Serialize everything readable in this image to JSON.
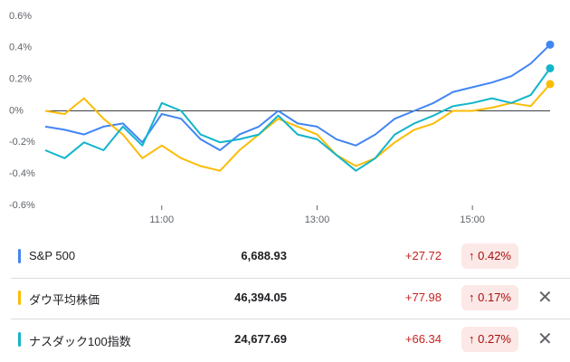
{
  "chart_data": {
    "type": "line",
    "x": [
      9.5,
      9.75,
      10,
      10.25,
      10.5,
      10.75,
      11,
      11.25,
      11.5,
      11.75,
      12,
      12.25,
      12.5,
      12.75,
      13,
      13.25,
      13.5,
      13.75,
      14,
      14.25,
      14.5,
      14.75,
      15,
      15.25,
      15.5,
      15.75,
      16
    ],
    "xlim": [
      9.5,
      16
    ],
    "xticks": [
      {
        "value": 11,
        "label": "11:00"
      },
      {
        "value": 13,
        "label": "13:00"
      },
      {
        "value": 15,
        "label": "15:00"
      }
    ],
    "ylim": [
      -0.6,
      0.6
    ],
    "yticks": [
      {
        "value": 0.6,
        "label": "0.6%"
      },
      {
        "value": 0.4,
        "label": "0.4%"
      },
      {
        "value": 0.2,
        "label": "0.2%"
      },
      {
        "value": 0,
        "label": "0%"
      },
      {
        "value": -0.2,
        "label": "-0.2%"
      },
      {
        "value": -0.4,
        "label": "-0.4%"
      },
      {
        "value": -0.6,
        "label": "-0.6%"
      }
    ],
    "series": [
      {
        "name": "S&P 500",
        "color": "#4285f4",
        "values": [
          -0.1,
          -0.12,
          -0.15,
          -0.1,
          -0.08,
          -0.2,
          -0.02,
          -0.05,
          -0.18,
          -0.25,
          -0.15,
          -0.1,
          0.0,
          -0.08,
          -0.1,
          -0.18,
          -0.22,
          -0.15,
          -0.05,
          0.0,
          0.05,
          0.12,
          0.15,
          0.18,
          0.22,
          0.3,
          0.42
        ]
      },
      {
        "name": "ダウ平均株価",
        "color": "#fbbc04",
        "values": [
          0.0,
          -0.02,
          0.08,
          -0.05,
          -0.15,
          -0.3,
          -0.22,
          -0.3,
          -0.35,
          -0.38,
          -0.25,
          -0.15,
          -0.05,
          -0.1,
          -0.15,
          -0.28,
          -0.35,
          -0.3,
          -0.2,
          -0.12,
          -0.08,
          0.0,
          0.0,
          0.02,
          0.05,
          0.03,
          0.17
        ]
      },
      {
        "name": "ナスダック100指数",
        "color": "#12b5cb",
        "values": [
          -0.25,
          -0.3,
          -0.2,
          -0.25,
          -0.1,
          -0.22,
          0.05,
          0.0,
          -0.15,
          -0.2,
          -0.18,
          -0.15,
          -0.03,
          -0.15,
          -0.18,
          -0.28,
          -0.38,
          -0.3,
          -0.15,
          -0.08,
          -0.03,
          0.03,
          0.05,
          0.08,
          0.05,
          0.1,
          0.27
        ]
      }
    ]
  },
  "table": {
    "rows": [
      {
        "name": "S&P 500",
        "price": "6,688.93",
        "change": "+27.72",
        "percent": "0.42%"
      },
      {
        "name": "ダウ平均株価",
        "price": "46,394.05",
        "change": "+77.98",
        "percent": "0.17%"
      },
      {
        "name": "ナスダック100指数",
        "price": "24,677.69",
        "change": "+66.34",
        "percent": "0.27%"
      }
    ]
  }
}
